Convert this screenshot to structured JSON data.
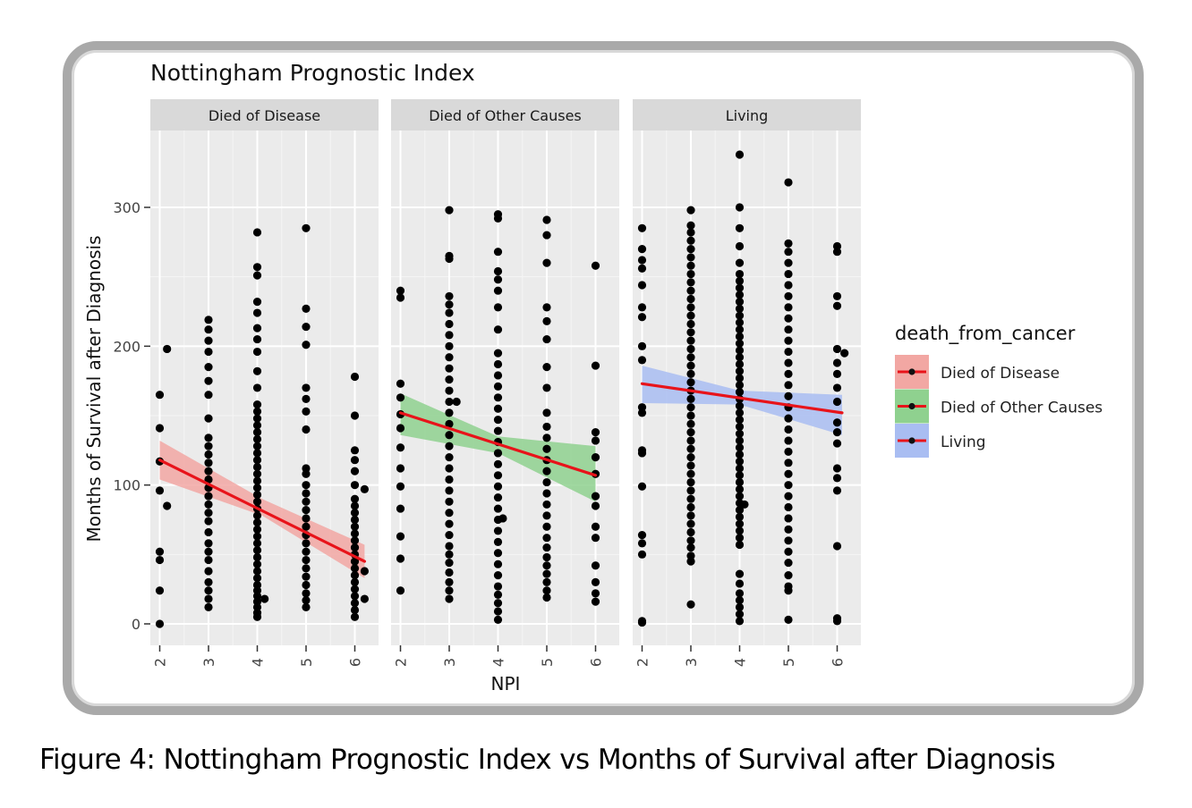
{
  "caption": "Figure 4: Nottingham Prognostic Index vs Months of Survival after Diagnosis",
  "chart_data": {
    "type": "scatter",
    "title": "Nottingham Prognostic Index",
    "xlabel": "NPI",
    "ylabel": "Months of Survival after Diagnosis",
    "x_ticks": [
      "2",
      "3",
      "4",
      "5",
      "6"
    ],
    "y_ticks": [
      "0",
      "100",
      "200",
      "300"
    ],
    "xlim": [
      1.75,
      6.35
    ],
    "ylim": [
      -10,
      352
    ],
    "grid": true,
    "legend": {
      "title": "death_from_cancer",
      "position": "right",
      "entries": [
        {
          "label": "Died of Disease",
          "fill": "#f2a7a3"
        },
        {
          "label": "Died of Other Causes",
          "fill": "#8fd18f"
        },
        {
          "label": "Living",
          "fill": "#a9bdf2"
        }
      ]
    },
    "colors": {
      "points": "#000000",
      "trend": "#e8131a",
      "panel_bg": "#ebebeb",
      "strip_bg": "#d9d9d9"
    },
    "panels": [
      {
        "name": "Died of Disease",
        "trend": {
          "x": [
            2.0,
            6.2
          ],
          "y": [
            118,
            45
          ]
        },
        "band": {
          "x": [
            2.0,
            4.1,
            6.2
          ],
          "upper": [
            132,
            90,
            57
          ],
          "lower": [
            104,
            78,
            33
          ]
        },
        "points": [
          {
            "x": 2.0,
            "y": [
              0,
              24,
              46,
              52,
              96,
              117,
              141,
              165
            ]
          },
          {
            "x": 2.15,
            "y": [
              85,
              198
            ]
          },
          {
            "x": 3.0,
            "y": [
              12,
              18,
              24,
              30,
              38,
              46,
              52,
              58,
              66,
              74,
              80,
              86,
              92,
              98,
              104,
              110,
              116,
              122,
              128,
              134,
              148,
              165,
              175,
              185,
              196,
              204,
              212,
              219
            ]
          },
          {
            "x": 4.0,
            "y": [
              5,
              8,
              12,
              16,
              20,
              24,
              28,
              33,
              38,
              43,
              48,
              53,
              58,
              63,
              68,
              73,
              78,
              83,
              88,
              93,
              98,
              103,
              108,
              113,
              118,
              123,
              128,
              133,
              138,
              143,
              148,
              153,
              158,
              170,
              182,
              196,
              205,
              213,
              224,
              232,
              251,
              257,
              282
            ]
          },
          {
            "x": 4.15,
            "y": [
              18
            ]
          },
          {
            "x": 5.0,
            "y": [
              12,
              17,
              22,
              28,
              34,
              40,
              46,
              52,
              58,
              64,
              70,
              76,
              82,
              88,
              94,
              100,
              108,
              112,
              140,
              153,
              162,
              170,
              201,
              214,
              227,
              285
            ]
          },
          {
            "x": 6.0,
            "y": [
              5,
              10,
              15,
              20,
              25,
              30,
              35,
              40,
              45,
              50,
              55,
              60,
              65,
              70,
              75,
              80,
              85,
              90,
              100,
              110,
              118,
              125,
              150,
              178
            ]
          },
          {
            "x": 6.2,
            "y": [
              18,
              38,
              97
            ]
          }
        ]
      },
      {
        "name": "Died of Other Causes",
        "trend": {
          "x": [
            2.0,
            6.0
          ],
          "y": [
            152,
            107
          ]
        },
        "band": {
          "x": [
            2.0,
            4.0,
            6.0
          ],
          "upper": [
            166,
            135,
            128
          ],
          "lower": [
            136,
            123,
            88
          ]
        },
        "points": [
          {
            "x": 2.0,
            "y": [
              24,
              47,
              63,
              83,
              99,
              112,
              127,
              141,
              151,
              163,
              173,
              235,
              240
            ]
          },
          {
            "x": 3.0,
            "y": [
              18,
              24,
              30,
              37,
              44,
              50,
              56,
              64,
              72,
              80,
              88,
              96,
              104,
              112,
              120,
              128,
              136,
              144,
              152,
              160,
              168,
              176,
              184,
              192,
              200,
              208,
              216,
              224,
              230,
              236,
              263,
              265,
              298
            ]
          },
          {
            "x": 3.15,
            "y": [
              160
            ]
          },
          {
            "x": 4.0,
            "y": [
              3,
              9,
              15,
              21,
              27,
              35,
              43,
              51,
              59,
              67,
              75,
              83,
              91,
              99,
              107,
              115,
              123,
              131,
              139,
              147,
              155,
              163,
              171,
              179,
              187,
              195,
              212,
              228,
              240,
              248,
              254,
              268,
              292,
              295
            ]
          },
          {
            "x": 4.1,
            "y": [
              76
            ]
          },
          {
            "x": 5.0,
            "y": [
              19,
              24,
              30,
              36,
              42,
              48,
              55,
              62,
              70,
              78,
              86,
              94,
              102,
              110,
              118,
              126,
              134,
              142,
              152,
              170,
              185,
              205,
              218,
              228,
              260,
              280,
              291
            ]
          },
          {
            "x": 6.0,
            "y": [
              16,
              22,
              30,
              42,
              62,
              70,
              85,
              92,
              108,
              120,
              132,
              138,
              186,
              258
            ]
          }
        ]
      },
      {
        "name": "Living",
        "trend": {
          "x": [
            2.0,
            6.1
          ],
          "y": [
            173,
            152
          ]
        },
        "band": {
          "x": [
            2.0,
            4.0,
            6.1
          ],
          "upper": [
            186,
            168,
            165
          ],
          "lower": [
            159,
            158,
            136
          ]
        },
        "points": [
          {
            "x": 2.0,
            "y": [
              1,
              2,
              50,
              58,
              64,
              99,
              123,
              125,
              152,
              156,
              190,
              200,
              221,
              228,
              244,
              256,
              262,
              270,
              285
            ]
          },
          {
            "x": 3.0,
            "y": [
              14,
              45,
              49,
              55,
              60,
              66,
              72,
              78,
              84,
              90,
              96,
              102,
              108,
              114,
              120,
              126,
              132,
              138,
              144,
              150,
              156,
              162,
              168,
              174,
              180,
              186,
              192,
              198,
              204,
              210,
              216,
              222,
              228,
              234,
              240,
              246,
              252,
              258,
              264,
              270,
              276,
              282,
              287,
              298
            ]
          },
          {
            "x": 4.0,
            "y": [
              2,
              7,
              12,
              17,
              22,
              29,
              36,
              57,
              62,
              67,
              72,
              77,
              82,
              87,
              92,
              97,
              102,
              107,
              112,
              117,
              122,
              127,
              132,
              137,
              142,
              147,
              152,
              157,
              162,
              167,
              172,
              177,
              182,
              187,
              192,
              197,
              202,
              207,
              212,
              217,
              222,
              227,
              232,
              237,
              242,
              247,
              252,
              260,
              272,
              285,
              300,
              338
            ]
          },
          {
            "x": 4.1,
            "y": [
              86
            ]
          },
          {
            "x": 5.0,
            "y": [
              3,
              24,
              27,
              35,
              44,
              52,
              60,
              68,
              76,
              84,
              92,
              100,
              108,
              116,
              124,
              132,
              140,
              148,
              156,
              164,
              172,
              180,
              188,
              196,
              204,
              212,
              220,
              228,
              236,
              244,
              252,
              260,
              268,
              274,
              318
            ]
          },
          {
            "x": 6.0,
            "y": [
              2,
              4,
              56,
              96,
              105,
              112,
              130,
              138,
              145,
              160,
              170,
              180,
              188,
              198,
              229,
              236,
              268,
              272
            ]
          },
          {
            "x": 6.15,
            "y": [
              195
            ]
          }
        ]
      }
    ]
  }
}
